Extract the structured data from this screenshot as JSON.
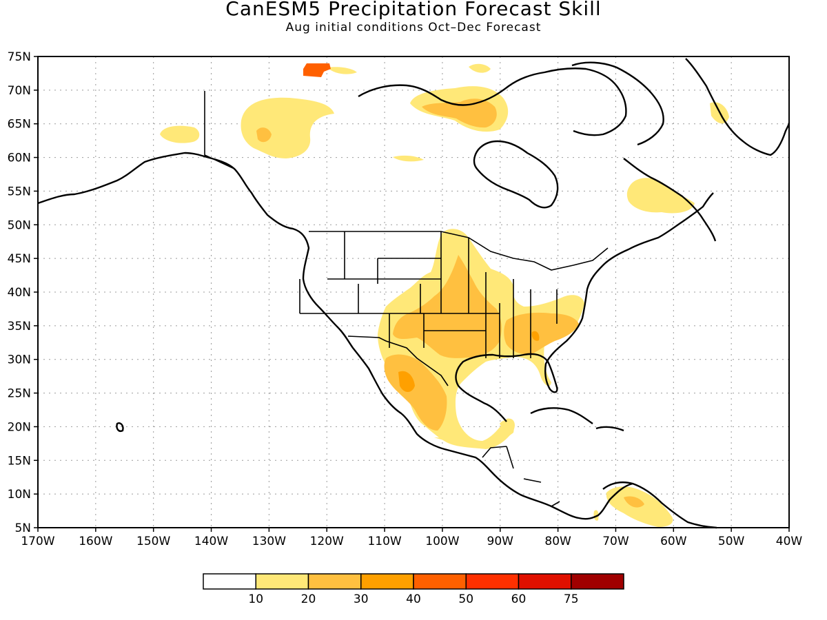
{
  "title": "CanESM5 Precipitation Forecast Skill",
  "subtitle": "Aug initial conditions  Oct–Dec Forecast",
  "map": {
    "lat_range": [
      5,
      75
    ],
    "lon_range": [
      -170,
      -40
    ],
    "lat_ticks": [
      "75N",
      "70N",
      "65N",
      "60N",
      "55N",
      "50N",
      "45N",
      "40N",
      "35N",
      "30N",
      "25N",
      "20N",
      "15N",
      "10N",
      "5N"
    ],
    "lon_ticks": [
      "170W",
      "160W",
      "150W",
      "140W",
      "130W",
      "120W",
      "110W",
      "100W",
      "90W",
      "80W",
      "70W",
      "60W",
      "50W",
      "40W"
    ],
    "grid": "dotted"
  },
  "colorbar": {
    "colors": [
      "#ffffff",
      "#ffe878",
      "#ffc040",
      "#ffa000",
      "#ff6000",
      "#ff3000",
      "#e01000",
      "#a00000"
    ],
    "labels": [
      "10",
      "20",
      "30",
      "40",
      "50",
      "60",
      "75"
    ]
  }
}
